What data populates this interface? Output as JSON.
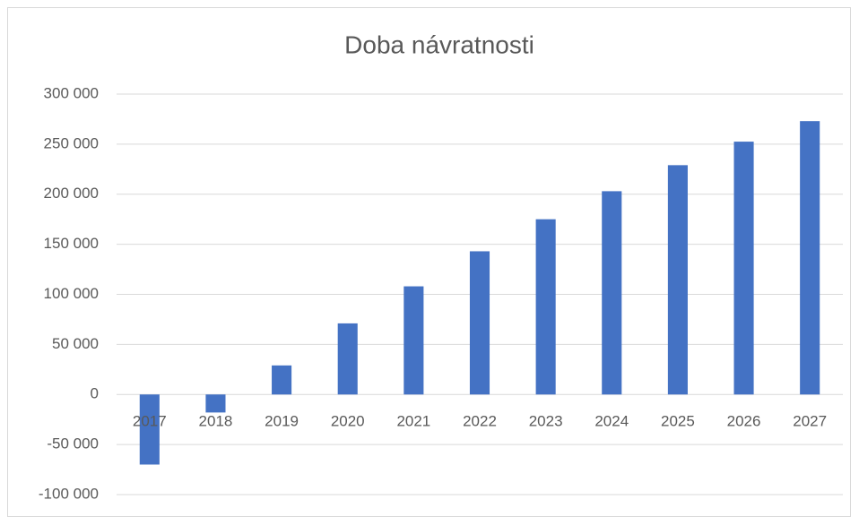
{
  "chart_data": {
    "type": "bar",
    "title": "Doba návratnosti",
    "categories": [
      "2017",
      "2018",
      "2019",
      "2020",
      "2021",
      "2022",
      "2023",
      "2024",
      "2025",
      "2026",
      "2027"
    ],
    "values": [
      -70000,
      -18000,
      29000,
      71000,
      108000,
      143000,
      175000,
      203000,
      229000,
      252500,
      273000
    ],
    "color": "#4472c4",
    "ylim": [
      -100000,
      300000
    ],
    "yticks": [
      {
        "value": -100000,
        "label": "-100 000"
      },
      {
        "value": -50000,
        "label": "-50 000"
      },
      0,
      {
        "value": 50000,
        "label": "50 000"
      },
      {
        "value": 100000,
        "label": "100 000"
      },
      {
        "value": 150000,
        "label": "150 000"
      },
      {
        "value": 200000,
        "label": "200 000"
      },
      {
        "value": 250000,
        "label": "250 000"
      },
      {
        "value": 300000,
        "label": "300 000"
      }
    ],
    "grid": true
  }
}
